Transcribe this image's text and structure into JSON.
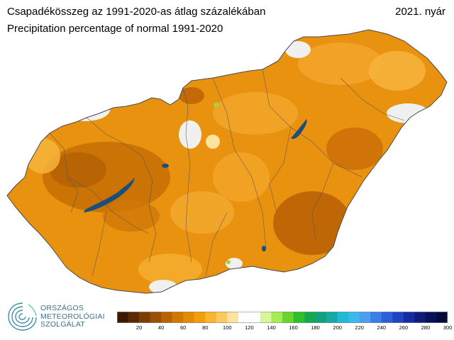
{
  "header": {
    "title_hu": "Csapadékösszeg az 1991-2020-as átlag százalékában",
    "title_en": "Precipitation percentage of normal 1991-2020",
    "season": "2021. nyár"
  },
  "logo": {
    "line1": "ORSZÁGOS",
    "line2": "METEOROLÓGIAI",
    "line3": "SZOLGÁLAT",
    "color": "#3f6f8c"
  },
  "legend": {
    "colors": [
      "#3b1800",
      "#5c2a00",
      "#7d3d00",
      "#9b4f00",
      "#b86400",
      "#d07800",
      "#e28c00",
      "#f09f0a",
      "#f7b531",
      "#fbca5c",
      "#fde39e",
      "#ffffff",
      "#ffffff",
      "#d7f799",
      "#a6ec55",
      "#6ad62d",
      "#2fbf2a",
      "#17a84f",
      "#12a17e",
      "#17a9a6",
      "#21b9d5",
      "#3ab8f0",
      "#4aa0ef",
      "#3a7ee6",
      "#2a5fd9",
      "#1e44c0",
      "#142d9e",
      "#0c1c78",
      "#071257",
      "#040b3a"
    ],
    "ticks": [
      "20",
      "40",
      "60",
      "80",
      "100",
      "120",
      "140",
      "160",
      "180",
      "200",
      "220",
      "240",
      "260",
      "280",
      "300"
    ],
    "min": 0,
    "max": 300,
    "step": 10
  },
  "map_colors": {
    "outline": "#4a4a4a",
    "lakes": "#1b4e7a",
    "deficit_strong": "#c66a06",
    "deficit_medium": "#e48f0e",
    "deficit_light": "#f5ad2a",
    "near_normal": "#f0f0f0",
    "above_normal": "#9ad94a"
  }
}
